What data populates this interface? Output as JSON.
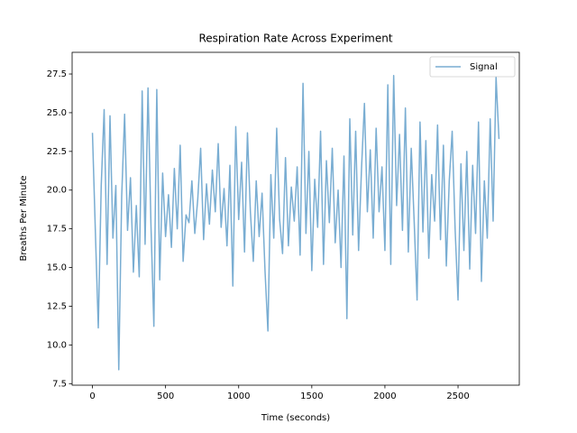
{
  "chart_data": {
    "type": "line",
    "title": "Respiration Rate Across Experiment",
    "x_label": "Time (seconds)",
    "y_label": "Breaths Per Minute",
    "x": [
      0,
      20,
      40,
      60,
      80,
      100,
      120,
      140,
      160,
      180,
      200,
      220,
      240,
      260,
      280,
      300,
      320,
      340,
      360,
      380,
      400,
      420,
      440,
      460,
      480,
      500,
      520,
      540,
      560,
      580,
      600,
      620,
      640,
      660,
      680,
      700,
      720,
      740,
      760,
      780,
      800,
      820,
      840,
      860,
      880,
      900,
      920,
      940,
      960,
      980,
      1000,
      1020,
      1040,
      1060,
      1080,
      1100,
      1120,
      1140,
      1160,
      1180,
      1200,
      1220,
      1240,
      1260,
      1280,
      1300,
      1320,
      1340,
      1360,
      1380,
      1400,
      1420,
      1440,
      1460,
      1480,
      1500,
      1520,
      1540,
      1560,
      1580,
      1600,
      1620,
      1640,
      1660,
      1680,
      1700,
      1720,
      1740,
      1760,
      1780,
      1800,
      1820,
      1840,
      1860,
      1880,
      1900,
      1920,
      1940,
      1960,
      1980,
      2000,
      2020,
      2040,
      2060,
      2080,
      2100,
      2120,
      2140,
      2160,
      2180,
      2200,
      2220,
      2240,
      2260,
      2280,
      2300,
      2320,
      2340,
      2360,
      2380,
      2400,
      2420,
      2440,
      2460,
      2480,
      2500,
      2520,
      2540,
      2560,
      2580,
      2600,
      2620,
      2640,
      2660,
      2680,
      2700,
      2720,
      2740,
      2760,
      2780
    ],
    "series": [
      {
        "name": "Signal",
        "color": "#1f77b4",
        "values": [
          23.7,
          17.3,
          11.1,
          20.3,
          25.2,
          15.2,
          24.8,
          16.9,
          20.3,
          8.4,
          19.6,
          24.9,
          17.4,
          20.8,
          14.7,
          19.0,
          14.4,
          26.4,
          16.5,
          26.6,
          17.8,
          11.2,
          26.5,
          14.2,
          21.1,
          17.0,
          19.7,
          16.3,
          21.4,
          17.5,
          22.9,
          15.4,
          18.4,
          17.9,
          20.6,
          17.2,
          19.4,
          22.7,
          16.8,
          20.4,
          17.8,
          21.3,
          18.6,
          23.0,
          17.6,
          20.1,
          16.4,
          21.6,
          13.8,
          24.1,
          18.1,
          21.8,
          16.0,
          23.7,
          18.6,
          15.4,
          20.6,
          17.0,
          19.8,
          14.8,
          10.9,
          21.0,
          16.9,
          24.0,
          18.1,
          15.9,
          22.1,
          16.4,
          20.2,
          18.0,
          21.5,
          15.8,
          26.9,
          17.2,
          22.5,
          14.8,
          20.7,
          17.6,
          23.8,
          15.2,
          21.9,
          17.9,
          22.7,
          16.6,
          20.0,
          15.0,
          22.2,
          11.7,
          24.6,
          17.1,
          23.8,
          16.1,
          21.4,
          25.6,
          18.6,
          22.6,
          16.9,
          24.0,
          18.6,
          21.5,
          16.1,
          26.8,
          15.2,
          27.4,
          19.0,
          23.6,
          17.4,
          25.3,
          16.0,
          22.7,
          18.0,
          12.9,
          24.4,
          17.3,
          23.2,
          15.6,
          21.0,
          18.0,
          24.2,
          16.8,
          22.9,
          15.1,
          20.6,
          23.8,
          17.5,
          12.9,
          21.7,
          16.1,
          22.5,
          14.9,
          21.6,
          17.2,
          24.4,
          14.1,
          20.6,
          16.9,
          24.6,
          18.0,
          27.3,
          23.3
        ]
      }
    ],
    "xlim": [
      -139,
      2919
    ],
    "xticks": [
      0,
      500,
      1000,
      1500,
      2000,
      2500
    ],
    "ylim": [
      7.4,
      28.9
    ],
    "yticks": [
      7.5,
      {
        "value": 10,
        "label": "10.0"
      },
      12.5,
      {
        "value": 15,
        "label": "15.0"
      },
      17.5,
      {
        "value": 20,
        "label": "20.0"
      },
      22.5,
      {
        "value": 25,
        "label": "25.0"
      },
      27.5
    ],
    "legend": "upper right",
    "grid": false
  }
}
